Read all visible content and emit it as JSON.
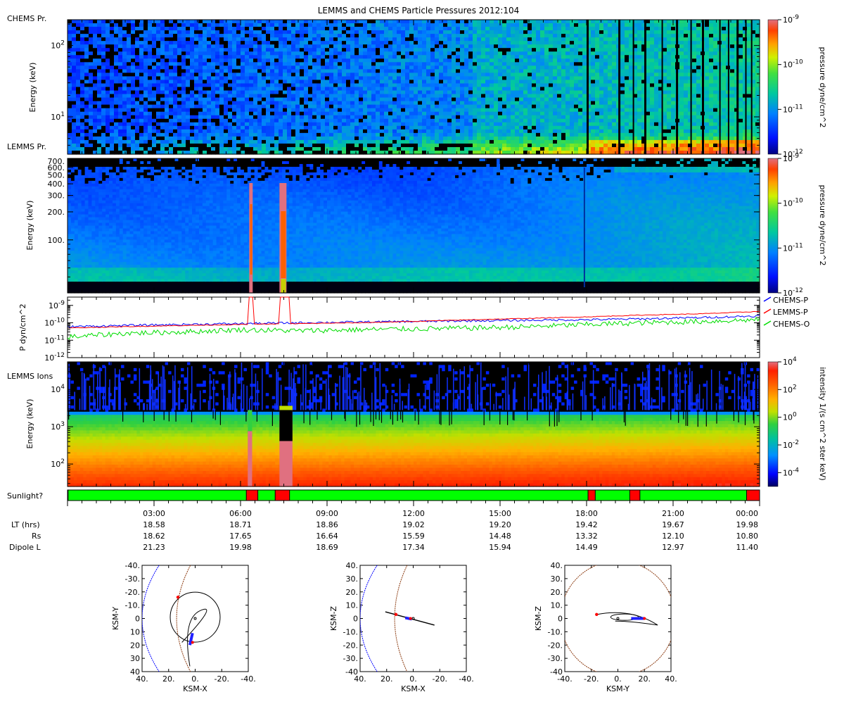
{
  "title": "LEMMS and CHEMS Particle Pressures  2012:104",
  "colors": {
    "frame": "#000000",
    "chems_p": "#0000ff",
    "lemms_p": "#ff0000",
    "chems_o": "#00dd00",
    "sun_on": "#00ff00",
    "sun_off": "#ff0000",
    "magnetopause": "#8b3a0f",
    "bow_shock": "#0000ff"
  },
  "chart_data": [
    {
      "type": "heatmap",
      "panel_label": "CHEMS Pr.",
      "ylabel": "Energy (keV)",
      "yscale": "log",
      "ylim": [
        3,
        230
      ],
      "yticks": [
        {
          "v": 10,
          "label": "10",
          "sup": "1"
        },
        {
          "v": 100,
          "label": "10",
          "sup": "2"
        }
      ],
      "colorbar": {
        "label": "pressure dyne/cm^2",
        "scale": "log",
        "range": [
          1e-12,
          1e-09
        ],
        "ticks": [
          {
            "v": 1e-09,
            "label": "10",
            "sup": "-9"
          },
          {
            "v": 1e-10,
            "label": "10",
            "sup": "-10"
          },
          {
            "v": 1e-11,
            "label": "10",
            "sup": "-11"
          },
          {
            "v": 1e-12,
            "label": "10",
            "sup": "-12"
          }
        ]
      },
      "data_gap_hours": [
        18.0,
        19.1,
        20.0,
        21.1,
        22.0,
        23.2
      ]
    },
    {
      "type": "heatmap",
      "panel_label": "LEMMS Pr.",
      "ylabel": "Energy (keV)",
      "yscale": "log",
      "ylim": [
        27,
        750
      ],
      "yticks": [
        {
          "v": 100,
          "label": "100."
        },
        {
          "v": 200,
          "label": "200."
        },
        {
          "v": 300,
          "label": "300."
        },
        {
          "v": 400,
          "label": "400."
        },
        {
          "v": 500,
          "label": "500."
        },
        {
          "v": 600,
          "label": "600."
        },
        {
          "v": 700,
          "label": "700."
        }
      ],
      "colorbar": {
        "label": "pressure dyne/cm^2",
        "scale": "log",
        "range": [
          1e-12,
          1e-09
        ],
        "ticks": [
          {
            "v": 1e-09,
            "label": "10",
            "sup": "-9"
          },
          {
            "v": 1e-10,
            "label": "10",
            "sup": "-10"
          },
          {
            "v": 1e-11,
            "label": "10",
            "sup": "-11"
          },
          {
            "v": 1e-12,
            "label": "10",
            "sup": "-12"
          }
        ]
      }
    },
    {
      "type": "line",
      "ylabel": "P dyn/cm^2",
      "yscale": "log",
      "ylim": [
        1e-12,
        3e-09
      ],
      "yticks": [
        {
          "v": 1e-09,
          "label": "10",
          "sup": "-9"
        },
        {
          "v": 1e-10,
          "label": "10",
          "sup": "-10"
        },
        {
          "v": 1e-11,
          "label": "10",
          "sup": "-11"
        },
        {
          "v": 1e-12,
          "label": "10",
          "sup": "-12"
        }
      ],
      "legend": [
        "CHEMS-P",
        "LEMMS-P",
        "CHEMS-O"
      ],
      "series": [
        {
          "name": "CHEMS-P",
          "hours": [
            0,
            2,
            4,
            6,
            8,
            10,
            12,
            14,
            16,
            18,
            20,
            22,
            24
          ],
          "values": [
            6e-11,
            7e-11,
            8e-11,
            9e-11,
            1e-10,
            1.1e-10,
            1.2e-10,
            1.3e-10,
            1.4e-10,
            1.5e-10,
            1.7e-10,
            2e-10,
            2.5e-10
          ]
        },
        {
          "name": "LEMMS-P",
          "hours": [
            0,
            2,
            4,
            6,
            8,
            10,
            12,
            14,
            16,
            18,
            20,
            22,
            24
          ],
          "values": [
            5e-11,
            6e-11,
            7e-11,
            8e-11,
            9e-11,
            1e-10,
            1.2e-10,
            1.5e-10,
            1.8e-10,
            2.2e-10,
            2.8e-10,
            3.3e-10,
            4.5e-10
          ]
        },
        {
          "name": "CHEMS-O",
          "hours": [
            0,
            2,
            4,
            6,
            8,
            10,
            12,
            14,
            16,
            18,
            20,
            22,
            24
          ],
          "values": [
            1.5e-11,
            2.5e-11,
            3e-11,
            4e-11,
            3.5e-11,
            4e-11,
            4.5e-11,
            5e-11,
            6e-11,
            8e-11,
            1e-10,
            1.2e-10,
            1.5e-10
          ]
        }
      ]
    },
    {
      "type": "heatmap",
      "panel_label": "LEMMS Ions",
      "ylabel": "Energy (keV)",
      "yscale": "log",
      "ylim": [
        25,
        55000
      ],
      "yticks": [
        {
          "v": 100,
          "label": "10",
          "sup": "2"
        },
        {
          "v": 1000,
          "label": "10",
          "sup": "3"
        },
        {
          "v": 10000,
          "label": "10",
          "sup": "4"
        }
      ],
      "colorbar": {
        "label": "intensity 1/(s cm^2 ster keV)",
        "scale": "log",
        "range": [
          1e-05,
          10000.0
        ],
        "ticks": [
          {
            "v": 10000.0,
            "label": "10",
            "sup": "4"
          },
          {
            "v": 100.0,
            "label": "10",
            "sup": "2"
          },
          {
            "v": 1,
            "label": "10",
            "sup": "0"
          },
          {
            "v": 0.01,
            "label": "10",
            "sup": "-2"
          },
          {
            "v": 0.0001,
            "label": "10",
            "sup": "-4"
          }
        ]
      },
      "contamination_hours": [
        [
          6.25,
          6.5
        ],
        [
          7.35,
          7.8
        ]
      ]
    }
  ],
  "sunlight": {
    "label": "Sunlight?",
    "shadow_hours": [
      [
        6.2,
        6.6
      ],
      [
        7.2,
        7.7
      ],
      [
        18.05,
        18.3
      ],
      [
        19.5,
        19.85
      ],
      [
        23.55,
        24.0
      ]
    ]
  },
  "time_axis": {
    "range_hours": [
      0,
      24
    ],
    "major_hours": [
      3,
      6,
      9,
      12,
      15,
      18,
      21,
      24
    ],
    "labels": [
      "03:00",
      "06:00",
      "09:00",
      "12:00",
      "15:00",
      "18:00",
      "21:00",
      "00:00"
    ],
    "rows": [
      {
        "label": "LT (hrs)",
        "values": [
          "18.58",
          "18.71",
          "18.86",
          "19.02",
          "19.20",
          "19.42",
          "19.67",
          "19.98"
        ]
      },
      {
        "label": "Rs",
        "values": [
          "18.62",
          "17.65",
          "16.64",
          "15.59",
          "14.48",
          "13.32",
          "12.10",
          "10.80"
        ]
      },
      {
        "label": "Dipole L",
        "values": [
          "21.23",
          "19.98",
          "18.69",
          "17.34",
          "15.94",
          "14.49",
          "12.97",
          "11.40"
        ]
      }
    ]
  },
  "orbit_plots": [
    {
      "xlabel": "KSM-X",
      "ylabel": "KSM-Y",
      "x_ticks": [
        "40.",
        "20.",
        "0.",
        "-20.",
        "-40."
      ],
      "y_ticks": [
        "-40.",
        "-30.",
        "-20.",
        "-10.",
        "0",
        "10",
        "20",
        "30",
        "40"
      ]
    },
    {
      "xlabel": "KSM-X",
      "ylabel": "KSM-Z",
      "x_ticks": [
        "40.",
        "20.",
        "0.",
        "-20.",
        "-40."
      ],
      "y_ticks": [
        "40.",
        "30.",
        "20.",
        "10.",
        "0",
        "-10.",
        "-20.",
        "-30.",
        "-40"
      ]
    },
    {
      "xlabel": "KSM-Y",
      "ylabel": "KSM-Z",
      "x_ticks": [
        "-40.",
        "-20.",
        "0.",
        "20.",
        "40."
      ],
      "y_ticks": [
        "40.",
        "30.",
        "20.",
        "10.",
        "0",
        "-10.",
        "-20.",
        "-30.",
        "-40"
      ]
    }
  ]
}
